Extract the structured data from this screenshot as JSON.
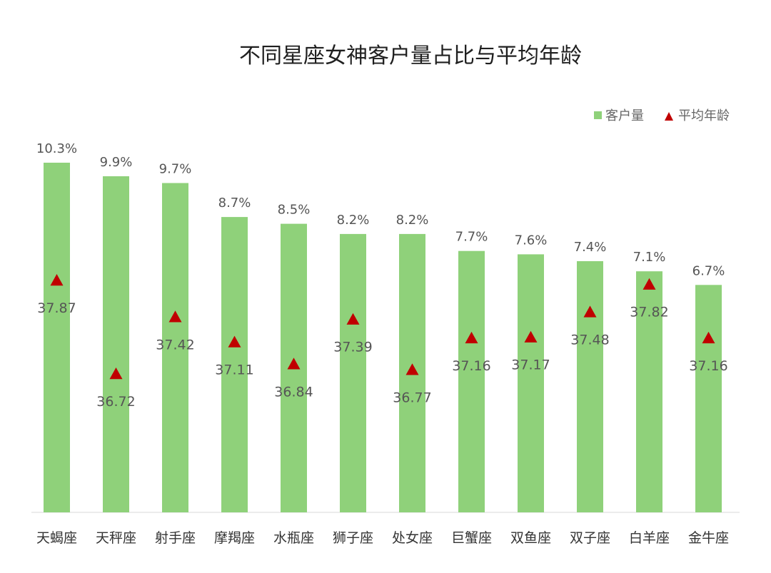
{
  "chart_data": {
    "type": "bar",
    "title": "不同星座女神客户量占比与平均年龄",
    "categories": [
      "天蝎座",
      "天秤座",
      "射手座",
      "摩羯座",
      "水瓶座",
      "狮子座",
      "处女座",
      "巨蟹座",
      "双鱼座",
      "双子座",
      "白羊座",
      "金牛座"
    ],
    "series": [
      {
        "name": "客户量",
        "kind": "bar",
        "values": [
          10.3,
          9.9,
          9.7,
          8.7,
          8.5,
          8.2,
          8.2,
          7.7,
          7.6,
          7.4,
          7.1,
          6.7
        ],
        "labels": [
          "10.3%",
          "9.9%",
          "9.7%",
          "8.7%",
          "8.5%",
          "8.2%",
          "8.2%",
          "7.7%",
          "7.6%",
          "7.4%",
          "7.1%",
          "6.7%"
        ]
      },
      {
        "name": "平均年龄",
        "kind": "marker",
        "values": [
          37.87,
          36.72,
          37.42,
          37.11,
          36.84,
          37.39,
          36.77,
          37.16,
          37.17,
          37.48,
          37.82,
          37.16
        ],
        "labels": [
          "37.87",
          "36.72",
          "37.42",
          "37.11",
          "36.84",
          "37.39",
          "36.77",
          "37.16",
          "37.17",
          "37.48",
          "37.82",
          "37.16"
        ]
      }
    ],
    "ylim_bar": [
      0,
      11.5
    ],
    "ylim_age": [
      35.5,
      38.5
    ],
    "legend": [
      "客户量",
      "平均年龄"
    ],
    "legend_position": "top-right",
    "colors": {
      "bar": "#8fd17a",
      "marker": "#c00000",
      "axis": "#d9d9d9"
    }
  }
}
